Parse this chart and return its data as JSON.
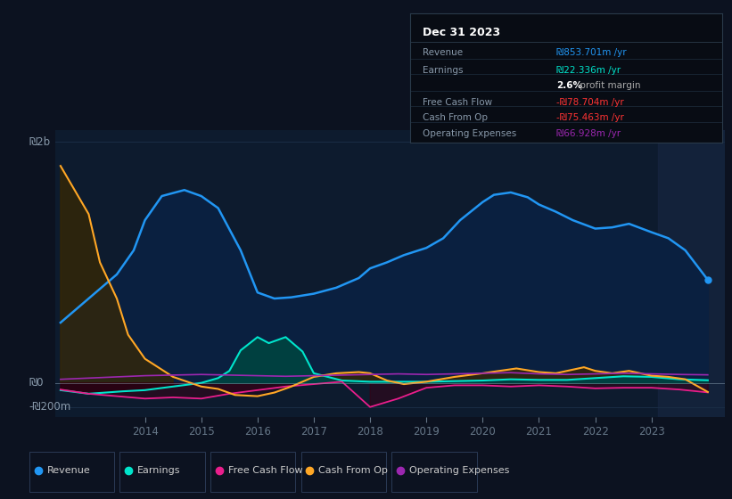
{
  "bg_color": "#0c1220",
  "plot_bg_color": "#0d1b2e",
  "tooltip_bg": "#080c14",
  "tooltip_border": "#2a3a4a",
  "title": "Dec 31 2023",
  "ytick_labels": [
    "-₪200m",
    "₪0",
    "₪2b"
  ],
  "xticks": [
    2014,
    2015,
    2016,
    2017,
    2018,
    2019,
    2020,
    2021,
    2022,
    2023
  ],
  "xlim": [
    2012.4,
    2024.3
  ],
  "ylim": [
    -280,
    2100
  ],
  "revenue_color": "#2196f3",
  "revenue_fill": "#0a2040",
  "earnings_color": "#00e5cc",
  "earnings_fill_pos": "#004040",
  "earnings_fill_neg": "#2a0010",
  "fcf_color": "#e91e8c",
  "cop_color": "#ffa726",
  "opex_color": "#9c27b0",
  "shaded_right_color": "#162540",
  "zero_line_color": "#8899aa",
  "grid_line_color": "#1a2d45",
  "x_rev": [
    2012.5,
    2013.0,
    2013.5,
    2013.8,
    2014.0,
    2014.3,
    2014.7,
    2015.0,
    2015.3,
    2015.7,
    2016.0,
    2016.3,
    2016.6,
    2017.0,
    2017.4,
    2017.8,
    2018.0,
    2018.3,
    2018.6,
    2019.0,
    2019.3,
    2019.6,
    2020.0,
    2020.2,
    2020.5,
    2020.8,
    2021.0,
    2021.3,
    2021.6,
    2022.0,
    2022.3,
    2022.6,
    2023.0,
    2023.3,
    2023.6,
    2024.0
  ],
  "y_rev": [
    500,
    700,
    900,
    1100,
    1350,
    1550,
    1600,
    1550,
    1450,
    1100,
    750,
    700,
    710,
    740,
    790,
    870,
    950,
    1000,
    1060,
    1120,
    1200,
    1350,
    1500,
    1560,
    1580,
    1540,
    1480,
    1420,
    1350,
    1280,
    1290,
    1320,
    1250,
    1200,
    1100,
    855
  ],
  "x_earn": [
    2012.5,
    2013.0,
    2013.3,
    2013.6,
    2014.0,
    2014.5,
    2015.0,
    2015.3,
    2015.5,
    2015.7,
    2016.0,
    2016.2,
    2016.5,
    2016.8,
    2017.0,
    2017.5,
    2018.0,
    2018.5,
    2019.0,
    2019.5,
    2020.0,
    2020.5,
    2021.0,
    2021.5,
    2022.0,
    2022.5,
    2023.0,
    2023.5,
    2024.0
  ],
  "y_earn": [
    -60,
    -90,
    -80,
    -70,
    -60,
    -30,
    0,
    40,
    100,
    270,
    380,
    330,
    380,
    260,
    80,
    20,
    10,
    10,
    10,
    15,
    20,
    30,
    25,
    25,
    40,
    55,
    50,
    30,
    22
  ],
  "x_fcf": [
    2012.5,
    2013.0,
    2013.5,
    2014.0,
    2014.5,
    2015.0,
    2015.5,
    2016.0,
    2016.5,
    2017.0,
    2017.5,
    2018.0,
    2018.5,
    2019.0,
    2019.5,
    2020.0,
    2020.5,
    2021.0,
    2021.5,
    2022.0,
    2022.5,
    2023.0,
    2023.5,
    2024.0
  ],
  "y_fcf": [
    -55,
    -90,
    -110,
    -130,
    -120,
    -130,
    -90,
    -60,
    -30,
    -10,
    10,
    -200,
    -130,
    -40,
    -20,
    -20,
    -30,
    -20,
    -30,
    -45,
    -40,
    -40,
    -55,
    -79
  ],
  "x_cop": [
    2012.5,
    2013.0,
    2013.2,
    2013.5,
    2013.7,
    2014.0,
    2014.5,
    2015.0,
    2015.3,
    2015.6,
    2016.0,
    2016.3,
    2016.6,
    2017.0,
    2017.4,
    2017.8,
    2018.0,
    2018.3,
    2018.6,
    2019.0,
    2019.5,
    2020.0,
    2020.3,
    2020.6,
    2021.0,
    2021.3,
    2021.5,
    2021.8,
    2022.0,
    2022.3,
    2022.6,
    2023.0,
    2023.3,
    2023.6,
    2024.0
  ],
  "y_cop": [
    1800,
    1400,
    1000,
    700,
    400,
    200,
    50,
    -30,
    -50,
    -100,
    -110,
    -80,
    -30,
    50,
    80,
    90,
    80,
    20,
    -10,
    10,
    50,
    80,
    100,
    120,
    90,
    80,
    100,
    130,
    100,
    80,
    100,
    60,
    50,
    30,
    -75
  ],
  "x_opex": [
    2012.5,
    2013.0,
    2013.5,
    2014.0,
    2014.5,
    2015.0,
    2015.5,
    2016.0,
    2016.5,
    2017.0,
    2017.5,
    2018.0,
    2018.5,
    2019.0,
    2019.5,
    2020.0,
    2020.5,
    2021.0,
    2021.5,
    2022.0,
    2022.5,
    2023.0,
    2023.5,
    2024.0
  ],
  "y_opex": [
    30,
    40,
    50,
    60,
    65,
    70,
    65,
    60,
    55,
    60,
    65,
    70,
    75,
    70,
    75,
    80,
    85,
    75,
    70,
    75,
    80,
    75,
    70,
    67
  ],
  "legend_items": [
    {
      "label": "Revenue",
      "color": "#2196f3"
    },
    {
      "label": "Earnings",
      "color": "#00e5cc"
    },
    {
      "label": "Free Cash Flow",
      "color": "#e91e8c"
    },
    {
      "label": "Cash From Op",
      "color": "#ffa726"
    },
    {
      "label": "Operating Expenses",
      "color": "#9c27b0"
    }
  ]
}
